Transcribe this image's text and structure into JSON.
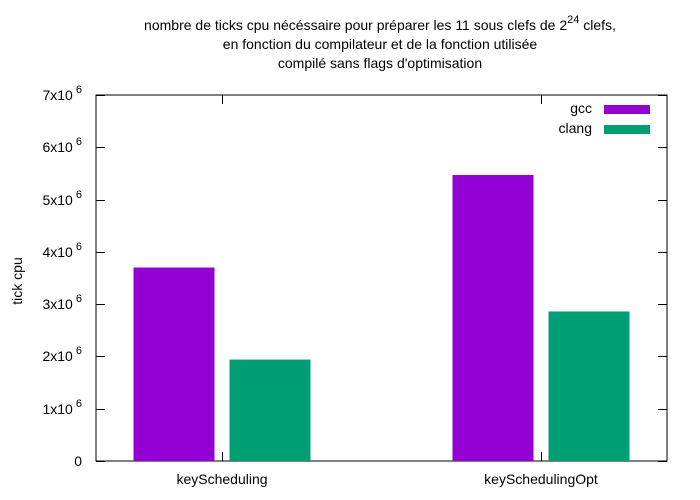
{
  "chart_data": {
    "type": "bar",
    "title": {
      "line1_prefix": "nombre de ticks cpu nécéssaire pour préparer les 11 sous clefs de 2",
      "line1_exponent": "24",
      "line1_suffix": " clefs,",
      "line2": "en fonction du compilateur et de la fonction utilisée",
      "line3": "compilé sans flags d'optimisation"
    },
    "xlabel": "",
    "ylabel": "tick cpu",
    "ylim": [
      0,
      7000000
    ],
    "y_ticks": [
      {
        "value": 0,
        "base": "0",
        "exp": ""
      },
      {
        "value": 1000000,
        "base": "1x10",
        "exp": "6"
      },
      {
        "value": 2000000,
        "base": "2x10",
        "exp": "6"
      },
      {
        "value": 3000000,
        "base": "3x10",
        "exp": "6"
      },
      {
        "value": 4000000,
        "base": "4x10",
        "exp": "6"
      },
      {
        "value": 5000000,
        "base": "5x10",
        "exp": "6"
      },
      {
        "value": 6000000,
        "base": "6x10",
        "exp": "6"
      },
      {
        "value": 7000000,
        "base": "7x10",
        "exp": "6"
      }
    ],
    "categories": [
      "keyScheduling",
      "keySchedulingOpt"
    ],
    "series": [
      {
        "name": "gcc",
        "color": "#9400d3",
        "values": [
          3700000,
          5470000
        ]
      },
      {
        "name": "clang",
        "color": "#009e73",
        "values": [
          1940000,
          2860000
        ]
      }
    ],
    "legend_position": "top-right",
    "grid": false
  }
}
